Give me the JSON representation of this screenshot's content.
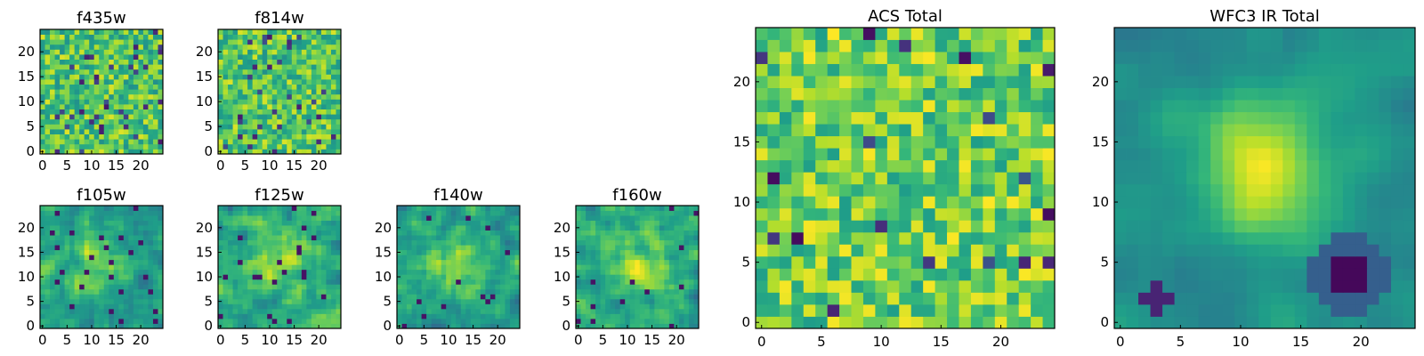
{
  "chart_data": [
    {
      "type": "heatmap",
      "title": "f435w",
      "colormap": "viridis",
      "grid_size": 25,
      "xlim": [
        0,
        25
      ],
      "ylim": [
        0,
        25
      ],
      "xticks": [
        0,
        5,
        10,
        15,
        20
      ],
      "yticks": [
        0,
        5,
        10,
        15,
        20
      ],
      "pattern": "noise",
      "seed": 11
    },
    {
      "type": "heatmap",
      "title": "f814w",
      "colormap": "viridis",
      "grid_size": 25,
      "xlim": [
        0,
        25
      ],
      "ylim": [
        0,
        25
      ],
      "xticks": [
        0,
        5,
        10,
        15,
        20
      ],
      "yticks": [
        0,
        5,
        10,
        15,
        20
      ],
      "pattern": "noise",
      "seed": 23
    },
    {
      "type": "heatmap",
      "title": "f105w",
      "colormap": "viridis",
      "grid_size": 25,
      "xlim": [
        0,
        25
      ],
      "ylim": [
        0,
        25
      ],
      "xticks": [
        0,
        5,
        10,
        15,
        20
      ],
      "yticks": [
        0,
        5,
        10,
        15,
        20
      ],
      "pattern": "smooth",
      "blob_center": [
        12,
        13
      ],
      "seed": 37
    },
    {
      "type": "heatmap",
      "title": "f125w",
      "colormap": "viridis",
      "grid_size": 25,
      "xlim": [
        0,
        25
      ],
      "ylim": [
        0,
        25
      ],
      "xticks": [
        0,
        5,
        10,
        15,
        20
      ],
      "yticks": [
        0,
        5,
        10,
        15,
        20
      ],
      "pattern": "smooth",
      "blob_center": [
        11,
        13
      ],
      "seed": 41
    },
    {
      "type": "heatmap",
      "title": "f140w",
      "colormap": "viridis",
      "grid_size": 25,
      "xlim": [
        0,
        25
      ],
      "ylim": [
        0,
        25
      ],
      "xticks": [
        0,
        5,
        10,
        15,
        20
      ],
      "yticks": [
        0,
        5,
        10,
        15,
        20
      ],
      "pattern": "smooth",
      "blob_center": [
        12,
        12
      ],
      "seed": 53
    },
    {
      "type": "heatmap",
      "title": "f160w",
      "colormap": "viridis",
      "grid_size": 25,
      "xlim": [
        0,
        25
      ],
      "ylim": [
        0,
        25
      ],
      "xticks": [
        0,
        5,
        10,
        15,
        20
      ],
      "yticks": [
        0,
        5,
        10,
        15,
        20
      ],
      "pattern": "smooth",
      "blob_center": [
        12,
        12
      ],
      "seed": 67
    },
    {
      "type": "heatmap",
      "title": "ACS Total",
      "colormap": "viridis",
      "grid_size": 25,
      "xlim": [
        0,
        25
      ],
      "ylim": [
        0,
        25
      ],
      "xticks": [
        0,
        5,
        10,
        15,
        20
      ],
      "yticks": [
        0,
        5,
        10,
        15,
        20
      ],
      "pattern": "mostly-bright",
      "seed": 79
    },
    {
      "type": "heatmap",
      "title": "WFC3 IR Total",
      "colormap": "viridis",
      "grid_size": 25,
      "xlim": [
        0,
        25
      ],
      "ylim": [
        0,
        25
      ],
      "xticks": [
        0,
        5,
        10,
        15,
        20
      ],
      "yticks": [
        0,
        5,
        10,
        15,
        20
      ],
      "pattern": "blob",
      "blob_center": [
        12,
        13
      ],
      "dark_spot": [
        19,
        4
      ],
      "seed": 97
    }
  ]
}
